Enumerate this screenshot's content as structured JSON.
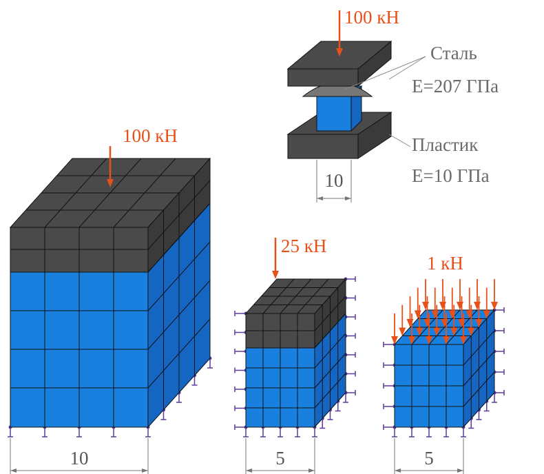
{
  "detail": {
    "load": "100 кН",
    "steel": {
      "name": "Сталь",
      "modulus": "E=207 ГПа"
    },
    "plastic": {
      "name": "Пластик",
      "modulus": "E=10 ГПа"
    },
    "dimension": "10"
  },
  "models": [
    {
      "load": "100 кН",
      "dimension": "10"
    },
    {
      "load": "25 кН",
      "dimension": "5"
    },
    {
      "load": "1 кН",
      "dimension": "5"
    }
  ]
}
